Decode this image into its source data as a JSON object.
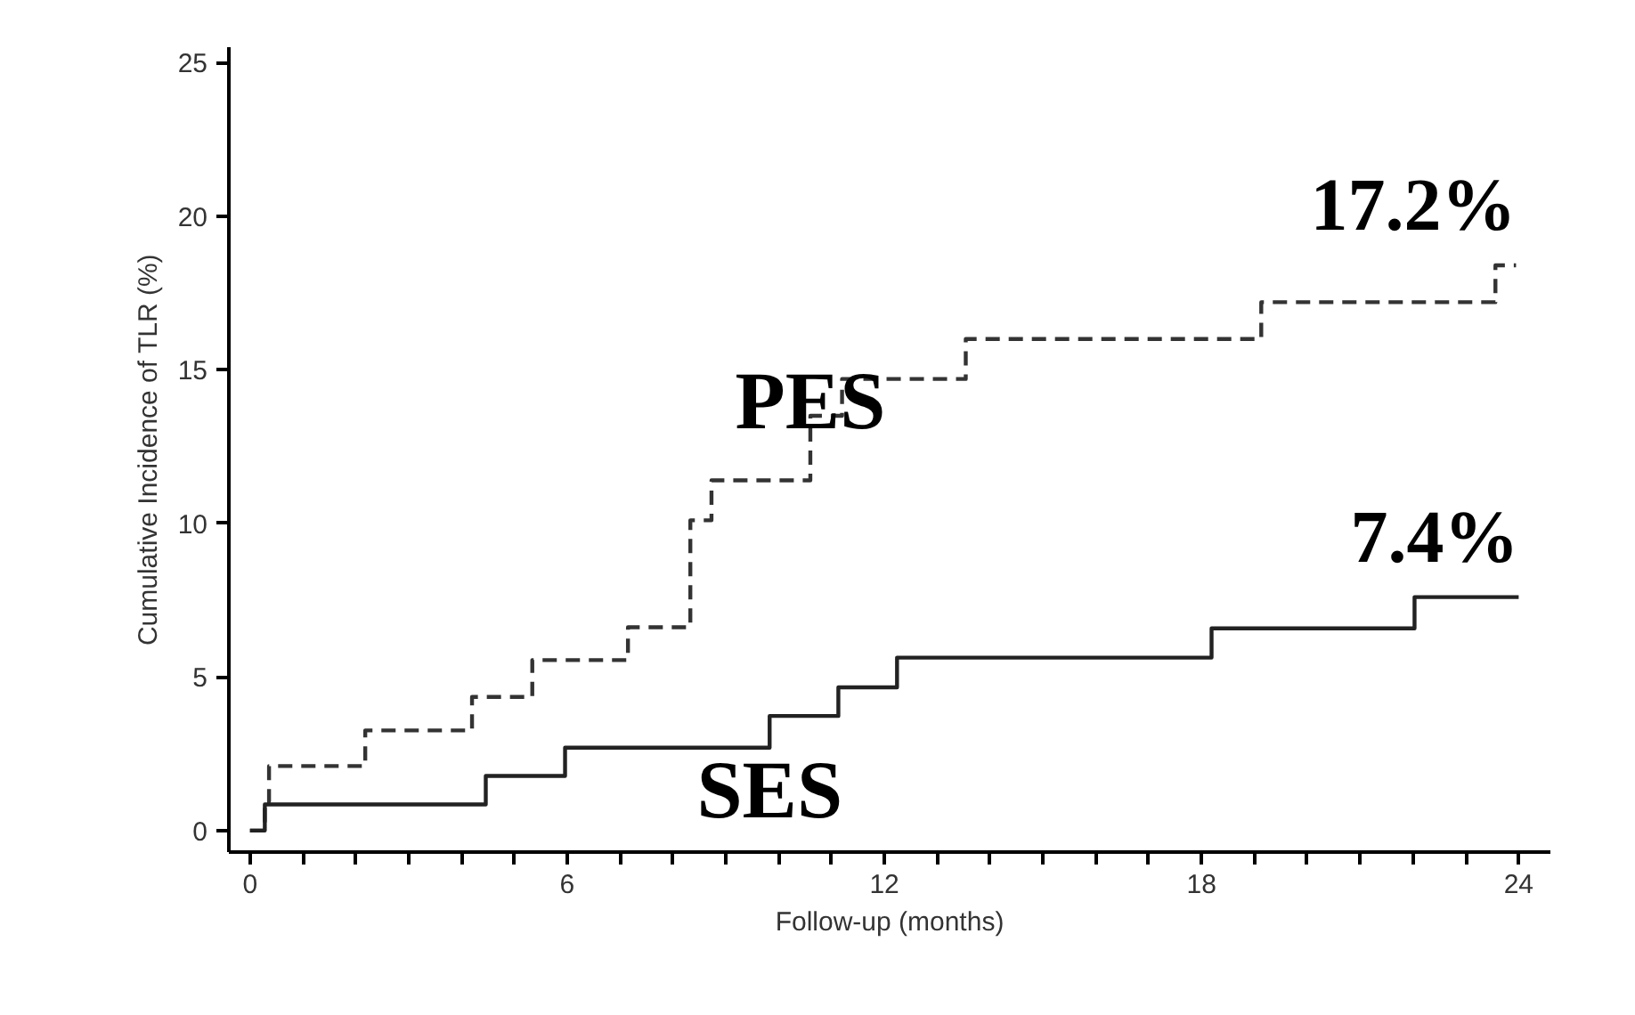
{
  "chart_data": {
    "type": "step",
    "xlabel": "Follow-up (months)",
    "ylabel": "Cumulative Incidence of TLR (%)",
    "xlim": [
      -0.4,
      24.6
    ],
    "ylim": [
      -0.7,
      25.5
    ],
    "xticks": [
      0,
      {
        "value": 1,
        "label": null
      },
      {
        "value": 2,
        "label": null
      },
      {
        "value": 3,
        "label": null
      },
      {
        "value": 4,
        "label": null
      },
      {
        "value": 5,
        "label": null
      },
      6,
      {
        "value": 7,
        "label": null
      },
      {
        "value": 8,
        "label": null
      },
      {
        "value": 9,
        "label": null
      },
      {
        "value": 10,
        "label": null
      },
      {
        "value": 11,
        "label": null
      },
      12,
      {
        "value": 13,
        "label": null
      },
      {
        "value": 14,
        "label": null
      },
      {
        "value": 15,
        "label": null
      },
      {
        "value": 16,
        "label": null
      },
      {
        "value": 17,
        "label": null
      },
      18,
      {
        "value": 19,
        "label": null
      },
      {
        "value": 20,
        "label": null
      },
      {
        "value": 21,
        "label": null
      },
      {
        "value": 22,
        "label": null
      },
      {
        "value": 23,
        "label": null
      },
      24
    ],
    "yticks": [
      0,
      5,
      10,
      15,
      20,
      25
    ],
    "grid": false,
    "legend": false,
    "series": [
      {
        "name": "PES",
        "color": "#333333",
        "line_style": "dashed",
        "x": [
          0,
          0.28,
          0.36,
          2.18,
          4.2,
          5.34,
          7.15,
          8.33,
          8.73,
          10.6,
          11.2,
          13.54,
          19.13,
          23.56,
          23.95
        ],
        "values": [
          0,
          0.95,
          2.1,
          3.26,
          4.35,
          5.55,
          6.62,
          10.1,
          11.4,
          13.5,
          14.7,
          16.0,
          17.2,
          18.4,
          18.4
        ]
      },
      {
        "name": "SES",
        "color": "#222222",
        "line_style": "solid",
        "x": [
          0,
          0.28,
          4.46,
          5.96,
          9.83,
          11.13,
          12.24,
          18.19,
          22.03,
          24.0
        ],
        "values": [
          0,
          0.85,
          1.78,
          2.7,
          3.73,
          4.66,
          5.63,
          6.58,
          7.6,
          7.6
        ]
      }
    ],
    "annotations": [
      "17.2%",
      "7.4%"
    ]
  }
}
